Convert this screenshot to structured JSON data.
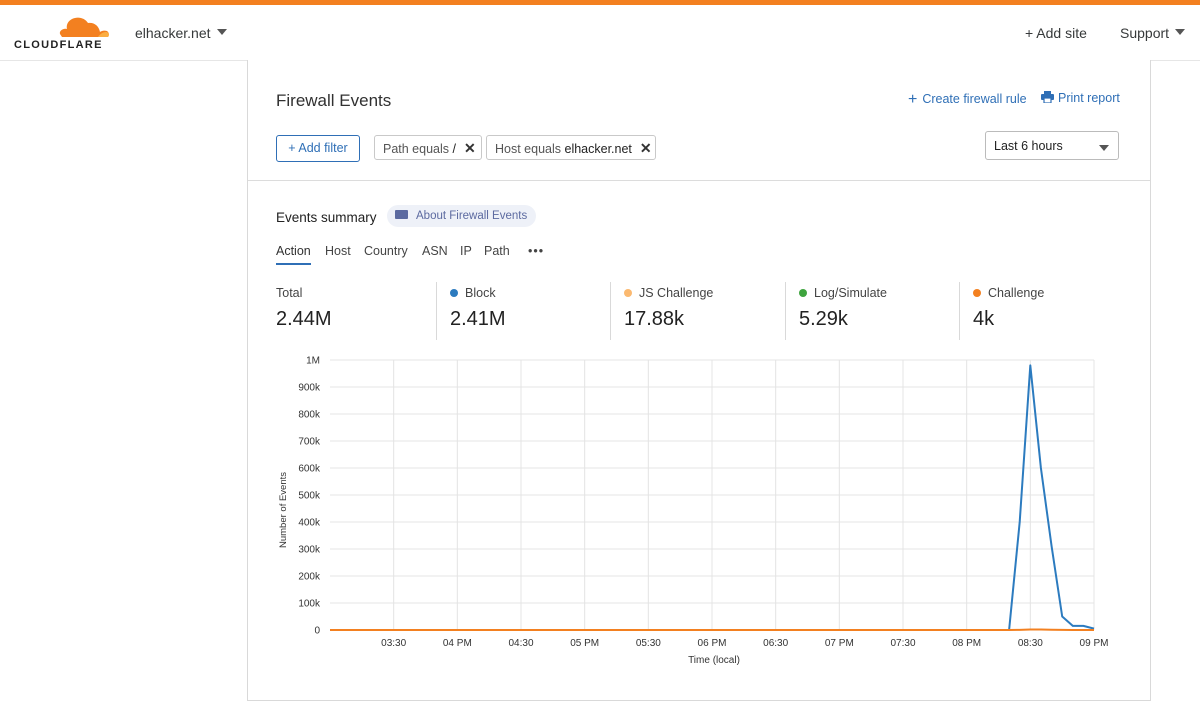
{
  "brand": {
    "name": "CLOUDFLARE",
    "accent": "#f38020"
  },
  "topbar": {
    "domain": "elhacker.net",
    "add_site": "+ Add site",
    "support": "Support"
  },
  "header": {
    "title": "Firewall Events",
    "create_rule": "Create firewall rule",
    "print_report": "Print report"
  },
  "filters": {
    "add_filter": "+ Add filter",
    "chips": [
      {
        "key": "Path equals",
        "value": "/"
      },
      {
        "key": "Host equals",
        "value": "elhacker.net"
      }
    ],
    "time_range": "Last 6 hours"
  },
  "summary": {
    "title": "Events summary",
    "about": "About Firewall Events",
    "tabs": [
      "Action",
      "Host",
      "Country",
      "ASN",
      "IP",
      "Path",
      "•••"
    ],
    "stats": [
      {
        "label": "Total",
        "value": "2.44M",
        "color": ""
      },
      {
        "label": "Block",
        "value": "2.41M",
        "color": "#2c7bbf"
      },
      {
        "label": "JS Challenge",
        "value": "17.88k",
        "color": "#fbb970"
      },
      {
        "label": "Log/Simulate",
        "value": "5.29k",
        "color": "#3ea43e"
      },
      {
        "label": "Challenge",
        "value": "4k",
        "color": "#f38020"
      }
    ]
  },
  "chart_data": {
    "type": "line",
    "ylabel": "Number of Events",
    "xlabel": "Time (local)",
    "ylim": [
      0,
      1000000
    ],
    "yticks": [
      "0",
      "100k",
      "200k",
      "300k",
      "400k",
      "500k",
      "600k",
      "700k",
      "800k",
      "900k",
      "1M"
    ],
    "xticks": [
      "03:30",
      "04 PM",
      "04:30",
      "05 PM",
      "05:30",
      "06 PM",
      "06:30",
      "07 PM",
      "07:30",
      "08 PM",
      "08:30",
      "09 PM"
    ],
    "x_hours": [
      15.0,
      15.25,
      15.5,
      15.75,
      16.0,
      16.25,
      16.5,
      16.75,
      17.0,
      17.25,
      17.5,
      17.75,
      18.0,
      18.25,
      18.5,
      18.75,
      19.0,
      19.25,
      19.5,
      19.75,
      20.0,
      20.25,
      20.3333,
      20.4167,
      20.5,
      20.5833,
      20.6667,
      20.75,
      20.8333,
      20.9167,
      21.0
    ],
    "series": [
      {
        "name": "Block",
        "color": "#2c7bbf",
        "values": [
          0,
          0,
          0,
          0,
          0,
          0,
          0,
          0,
          0,
          0,
          0,
          0,
          0,
          0,
          0,
          0,
          0,
          0,
          0,
          0,
          0,
          0,
          0,
          400000,
          980000,
          600000,
          310000,
          50000,
          15000,
          15000,
          5000
        ]
      },
      {
        "name": "Challenge",
        "color": "#f38020",
        "values": [
          0,
          0,
          0,
          0,
          0,
          0,
          0,
          0,
          0,
          0,
          0,
          0,
          0,
          0,
          0,
          0,
          0,
          0,
          0,
          0,
          0,
          0,
          0,
          500,
          2000,
          2000,
          1000,
          500,
          0,
          0,
          0
        ]
      }
    ]
  }
}
